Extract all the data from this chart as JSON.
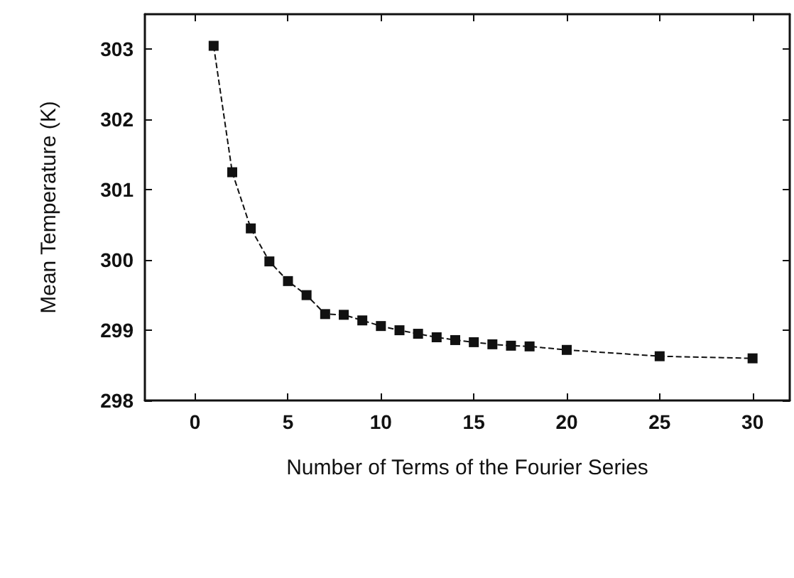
{
  "chart_data": {
    "type": "line",
    "xlabel": "Number of Terms of the Fourier Series",
    "ylabel": "Mean Temperature (K)",
    "x": [
      1,
      2,
      3,
      4,
      5,
      6,
      7,
      8,
      9,
      10,
      11,
      12,
      13,
      14,
      15,
      16,
      17,
      18,
      20,
      25,
      30
    ],
    "series": [
      {
        "color": "#111111",
        "values": [
          303.05,
          301.25,
          300.45,
          299.98,
          299.7,
          299.5,
          299.23,
          299.22,
          299.14,
          299.06,
          299.0,
          298.95,
          298.9,
          298.86,
          298.83,
          298.8,
          298.78,
          298.77,
          298.72,
          298.63,
          298.6
        ]
      }
    ],
    "xlim": [
      -2.7,
      32
    ],
    "xticks": [
      0,
      5,
      10,
      15,
      20,
      25,
      30
    ],
    "ylim": [
      298,
      303.5
    ],
    "yticks": [
      298,
      299,
      300,
      301,
      302,
      303
    ],
    "marker": "square",
    "line_style": "dashed",
    "grid": false
  }
}
